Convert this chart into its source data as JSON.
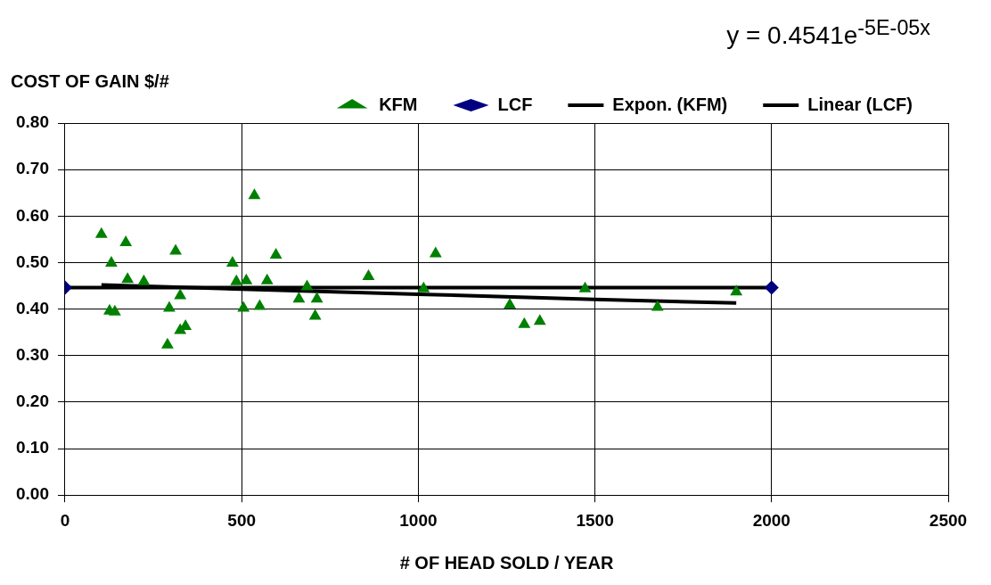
{
  "chart_data": {
    "type": "scatter",
    "ylabel": "COST OF GAIN $/#",
    "xlabel": "# OF HEAD SOLD / YEAR",
    "annotations": [
      "y = 0.4541e$^{-5E-05x}$"
    ],
    "xlim": [
      0,
      2500
    ],
    "xticks": [
      0,
      500,
      1000,
      1500,
      2000,
      2500
    ],
    "ylim": [
      0,
      0.8
    ],
    "yticks": [
      {
        "value": 0,
        "label": "0.00"
      },
      {
        "value": 0.1,
        "label": "0.10"
      },
      {
        "value": 0.2,
        "label": "0.20"
      },
      {
        "value": 0.3,
        "label": "0.30"
      },
      {
        "value": 0.4,
        "label": "0.40"
      },
      {
        "value": 0.5,
        "label": "0.50"
      },
      {
        "value": 0.6,
        "label": "0.60"
      },
      {
        "value": 0.7,
        "label": "0.70"
      },
      {
        "value": 0.8,
        "label": "0.80"
      }
    ],
    "grid": true,
    "legend": "top",
    "series": [
      {
        "name": "KFM",
        "type": "scatter",
        "marker": "triangle",
        "color": "#008000",
        "x": [
          103,
          172,
          131,
          313,
          177,
          223,
          126,
          141,
          326,
          295,
          341,
          326,
          290,
          536,
          474,
          485,
          513,
          505,
          551,
          572,
          597,
          685,
          662,
          713,
          708,
          859,
          1049,
          1015,
          1259,
          1300,
          1344,
          1472,
          1677,
          1900
        ],
        "values": [
          0.561,
          0.543,
          0.499,
          0.525,
          0.464,
          0.459,
          0.396,
          0.394,
          0.429,
          0.402,
          0.363,
          0.354,
          0.323,
          0.644,
          0.499,
          0.459,
          0.461,
          0.402,
          0.406,
          0.461,
          0.516,
          0.448,
          0.422,
          0.422,
          0.385,
          0.47,
          0.519,
          0.444,
          0.409,
          0.367,
          0.374,
          0.444,
          0.404,
          0.437
        ]
      },
      {
        "name": "LCF",
        "type": "scatter",
        "marker": "diamond",
        "color": "#000080",
        "x": [
          0,
          2000
        ],
        "values": [
          0.446,
          0.446
        ]
      },
      {
        "name": "Expon. (KFM)",
        "type": "line",
        "marker": "none",
        "line_style": "solid",
        "color": "#000000",
        "x": [
          103,
          500,
          1000,
          1500,
          1900
        ],
        "values": [
          0.452,
          0.443,
          0.432,
          0.421,
          0.413
        ]
      },
      {
        "name": "Linear (LCF)",
        "type": "line",
        "marker": "none",
        "line_style": "solid",
        "color": "#000000",
        "x": [
          0,
          2000
        ],
        "values": [
          0.446,
          0.446
        ]
      }
    ]
  }
}
